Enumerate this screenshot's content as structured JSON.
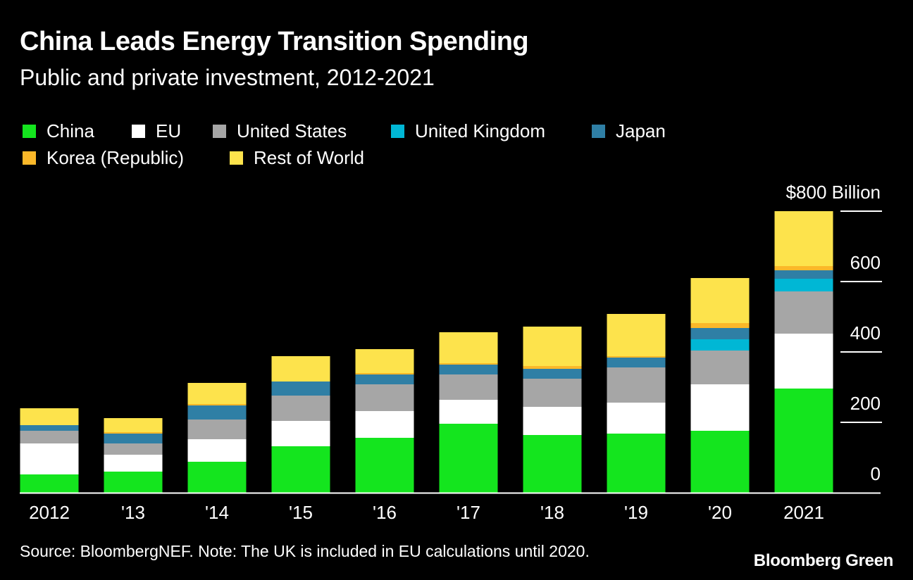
{
  "title": "China Leads Energy Transition Spending",
  "subtitle": "Public and private investment, 2012-2021",
  "source": "Source: BloombergNEF. Note: The UK is included in EU calculations until 2020.",
  "brand": "Bloomberg Green",
  "colors": {
    "China": "#14e51e",
    "EU": "#ffffff",
    "United States": "#a6a6a6",
    "United Kingdom": "#00b7d5",
    "Japan": "#2f7fa5",
    "Korea (Republic)": "#fbb829",
    "Rest of World": "#fde34c"
  },
  "chart_data": {
    "type": "bar",
    "stacked": true,
    "title": "China Leads Energy Transition Spending",
    "subtitle": "Public and private investment, 2012-2021",
    "categories": [
      "2012",
      "'13",
      "'14",
      "'15",
      "'16",
      "'17",
      "'18",
      "'19",
      "'20",
      "2021"
    ],
    "y_unit_label": "$800 Billion",
    "ytick_labels": [
      "0",
      "200",
      "400",
      "600",
      "$800 Billion"
    ],
    "yticks": [
      0,
      200,
      400,
      600,
      800
    ],
    "ylim": [
      0,
      800
    ],
    "grid": false,
    "legend_position": "top",
    "series": [
      {
        "name": "China",
        "values": [
          52,
          60,
          88,
          132,
          156,
          196,
          164,
          168,
          176,
          296
        ]
      },
      {
        "name": "EU",
        "values": [
          88,
          48,
          64,
          72,
          76,
          68,
          80,
          88,
          132,
          156
        ]
      },
      {
        "name": "United States",
        "values": [
          36,
          32,
          56,
          72,
          76,
          72,
          80,
          100,
          96,
          120
        ]
      },
      {
        "name": "United Kingdom",
        "values": [
          0,
          0,
          0,
          0,
          0,
          0,
          0,
          0,
          32,
          36
        ]
      },
      {
        "name": "Japan",
        "values": [
          16,
          28,
          40,
          40,
          28,
          28,
          28,
          28,
          32,
          24
        ]
      },
      {
        "name": "Korea (Republic)",
        "values": [
          0,
          4,
          4,
          0,
          4,
          4,
          8,
          4,
          14,
          12
        ]
      },
      {
        "name": "Rest of World",
        "values": [
          48,
          40,
          60,
          72,
          68,
          88,
          112,
          120,
          128,
          156
        ]
      }
    ]
  }
}
